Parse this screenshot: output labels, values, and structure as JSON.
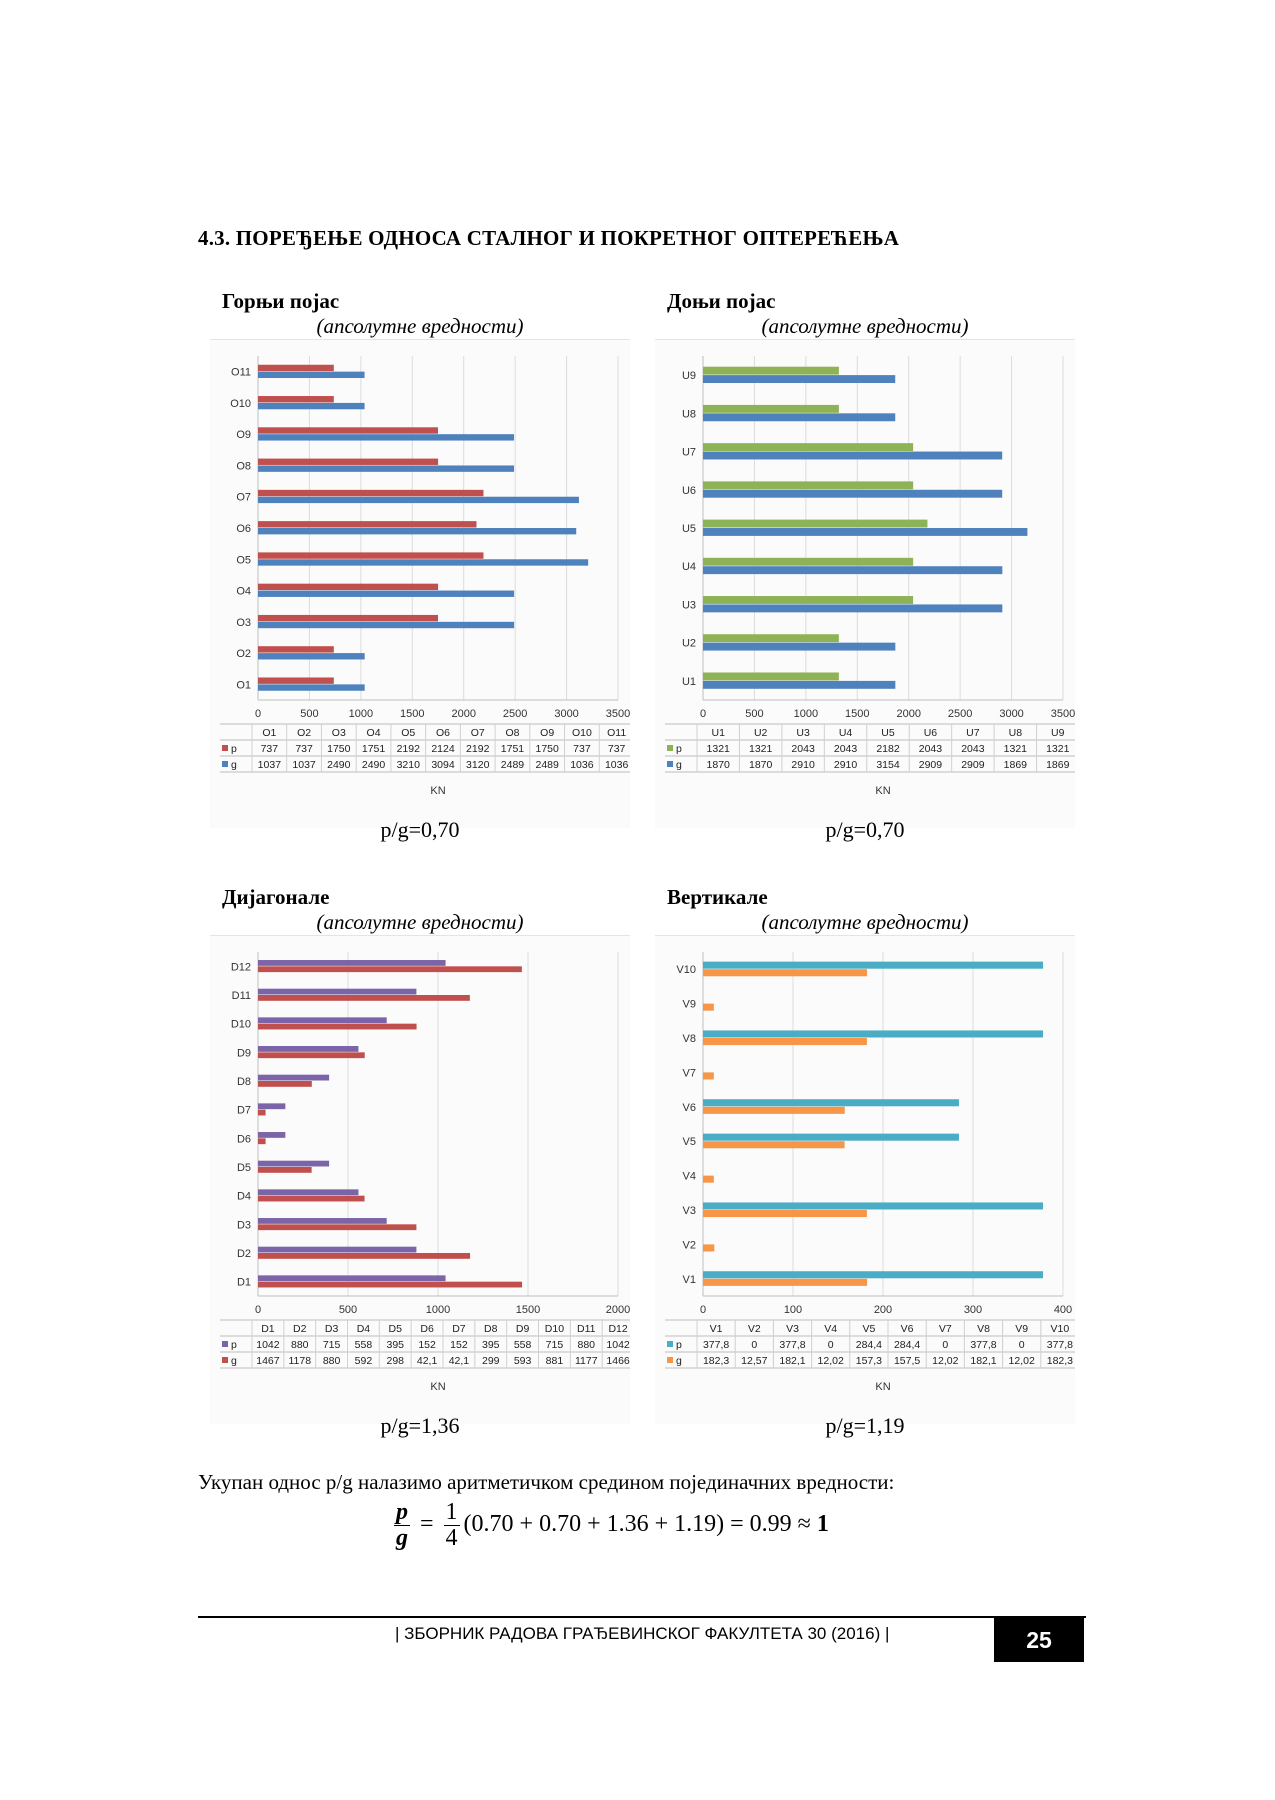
{
  "section_title": "4.3. ПОРЕЂЕЊЕ ОДНОСА СТАЛНОГ И ПОКРЕТНОГ ОПТЕРЕЋЕЊА",
  "panels": [
    {
      "title": "Горњи појас",
      "subtitle": "(апсолутне вредности)",
      "ratio": "p/g=0,70"
    },
    {
      "title": "Доњи појас",
      "subtitle": "(апсолутне вредности)",
      "ratio": "p/g=0,70"
    },
    {
      "title": "Дијагонале",
      "subtitle": "(апсолутне вредности)",
      "ratio": "p/g=1,36"
    },
    {
      "title": "Вертикале",
      "subtitle": "(апсолутне вредности)",
      "ratio": "p/g=1,19"
    }
  ],
  "summary": "Укупан однос p/g налазимо аритметичком средином појединачних вредности:",
  "formula": {
    "lhs_num": "p",
    "lhs_den": "g",
    "eq": "=",
    "coef_num": "1",
    "coef_den": "4",
    "expr": "(0.70 + 0.70 + 1.36 + 1.19) = 0.99 ≈ ",
    "result": "1"
  },
  "footer": {
    "text": "| ЗБОРНИК РАДОВА ГРАЂЕВИНСКОГ ФАКУЛТЕТА 30  (2016) |",
    "page": "25"
  },
  "chart_data": [
    {
      "type": "bar",
      "orientation": "horizontal",
      "categories": [
        "O1",
        "O2",
        "O3",
        "O4",
        "O5",
        "O6",
        "O7",
        "O8",
        "O9",
        "O10",
        "O11"
      ],
      "series": [
        {
          "name": "p",
          "color": "#c0504d",
          "values": [
            737,
            737,
            1750,
            1751,
            2192,
            2124,
            2192,
            1751,
            1750,
            737,
            737
          ]
        },
        {
          "name": "g",
          "color": "#4f81bd",
          "values": [
            1037,
            1037,
            2490,
            2490,
            3210,
            3094,
            3120,
            2489,
            2489,
            1036,
            1036
          ]
        }
      ],
      "xlim": [
        0,
        3500
      ],
      "xticks": [
        0,
        500,
        1000,
        1500,
        2000,
        2500,
        3000,
        3500
      ],
      "xlabel": "KN",
      "grid": true,
      "data_table": true
    },
    {
      "type": "bar",
      "orientation": "horizontal",
      "categories": [
        "U1",
        "U2",
        "U3",
        "U4",
        "U5",
        "U6",
        "U7",
        "U8",
        "U9"
      ],
      "series": [
        {
          "name": "p",
          "color": "#8db356",
          "values": [
            1321,
            1321,
            2043,
            2043,
            2182,
            2043,
            2043,
            1321,
            1321
          ]
        },
        {
          "name": "g",
          "color": "#4f81bd",
          "values": [
            1870,
            1870,
            2910,
            2910,
            3154,
            2909,
            2909,
            1869,
            1869
          ]
        }
      ],
      "xlim": [
        0,
        3500
      ],
      "xticks": [
        0,
        500,
        1000,
        1500,
        2000,
        2500,
        3000,
        3500
      ],
      "xlabel": "KN",
      "grid": true,
      "data_table": true
    },
    {
      "type": "bar",
      "orientation": "horizontal",
      "categories": [
        "D1",
        "D2",
        "D3",
        "D4",
        "D5",
        "D6",
        "D7",
        "D8",
        "D9",
        "D10",
        "D11",
        "D12"
      ],
      "series": [
        {
          "name": "p",
          "color": "#7b64a8",
          "values": [
            1042,
            880,
            715,
            558,
            395,
            152,
            152,
            395,
            558,
            715,
            880,
            1042
          ]
        },
        {
          "name": "g",
          "color": "#c0504d",
          "values": [
            1467,
            1178,
            880,
            592,
            298,
            42.1,
            42.1,
            299,
            593,
            881,
            1177,
            1466
          ]
        }
      ],
      "value_labels": {
        "p": [
          "1042",
          "880",
          "715",
          "558",
          "395",
          "152",
          "152",
          "395",
          "558",
          "715",
          "880",
          "1042"
        ],
        "g": [
          "1467",
          "1178",
          "880",
          "592",
          "298",
          "42,1",
          "42,1",
          "299",
          "593",
          "881",
          "1177",
          "1466"
        ]
      },
      "xlim": [
        0,
        2000
      ],
      "xticks": [
        0,
        500,
        1000,
        1500,
        2000
      ],
      "xlabel": "KN",
      "grid": true,
      "data_table": true
    },
    {
      "type": "bar",
      "orientation": "horizontal",
      "categories": [
        "V1",
        "V2",
        "V3",
        "V4",
        "V5",
        "V6",
        "V7",
        "V8",
        "V9",
        "V10"
      ],
      "series": [
        {
          "name": "p",
          "color": "#4bacc6",
          "values": [
            377.8,
            0,
            377.8,
            0,
            284.4,
            284.4,
            0,
            377.8,
            0,
            377.8
          ]
        },
        {
          "name": "g",
          "color": "#f79646",
          "values": [
            182.3,
            12.57,
            182.1,
            12.02,
            157.3,
            157.5,
            12.02,
            182.1,
            12.02,
            182.3
          ]
        }
      ],
      "value_labels": {
        "p": [
          "377,8",
          "0",
          "377,8",
          "0",
          "284,4",
          "284,4",
          "0",
          "377,8",
          "0",
          "377,8"
        ],
        "g": [
          "182,3",
          "12,57",
          "182,1",
          "12,02",
          "157,3",
          "157,5",
          "12,02",
          "182,1",
          "12,02",
          "182,3"
        ]
      },
      "xlim": [
        0,
        400
      ],
      "xticks": [
        0,
        100,
        200,
        300,
        400
      ],
      "xlabel": "KN",
      "grid": true,
      "data_table": true
    }
  ]
}
